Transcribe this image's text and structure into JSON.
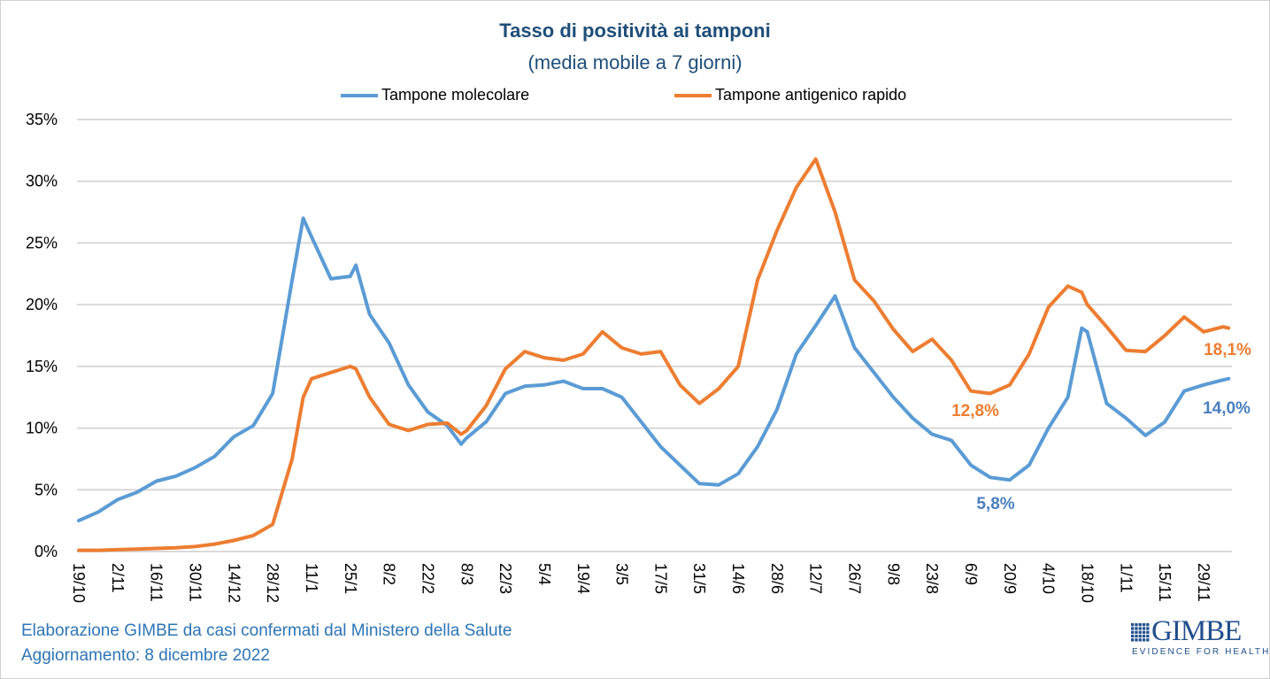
{
  "chart_data": {
    "type": "line",
    "title": "Tasso di positività ai tamponi",
    "subtitle": "(media mobile a 7 giorni)",
    "xlabel": "",
    "ylabel": "",
    "ylim": [
      0,
      35
    ],
    "yticks": [
      "0%",
      "5%",
      "10%",
      "15%",
      "20%",
      "25%",
      "30%",
      "35%"
    ],
    "ytick_values": [
      0,
      5,
      10,
      15,
      20,
      25,
      30,
      35
    ],
    "grid": true,
    "legend": "top",
    "xrange": [
      "2021-10-19",
      "2022-12-08"
    ],
    "xtick_dates": [
      "2021-10-19",
      "2021-11-02",
      "2021-11-16",
      "2021-11-30",
      "2021-12-14",
      "2021-12-28",
      "2022-01-11",
      "2022-01-25",
      "2022-02-08",
      "2022-02-22",
      "2022-03-08",
      "2022-03-22",
      "2022-04-05",
      "2022-04-19",
      "2022-05-03",
      "2022-05-17",
      "2022-05-31",
      "2022-06-14",
      "2022-06-28",
      "2022-07-12",
      "2022-07-26",
      "2022-08-09",
      "2022-08-23",
      "2022-09-06",
      "2022-09-20",
      "2022-10-04",
      "2022-10-18",
      "2022-11-01",
      "2022-11-15",
      "2022-11-29"
    ],
    "xticks": [
      "19/10",
      "2/11",
      "16/11",
      "30/11",
      "14/12",
      "28/12",
      "11/1",
      "25/1",
      "8/2",
      "22/2",
      "8/3",
      "22/3",
      "5/4",
      "19/4",
      "3/5",
      "17/5",
      "31/5",
      "14/6",
      "28/6",
      "12/7",
      "26/7",
      "9/8",
      "23/8",
      "6/9",
      "20/9",
      "4/10",
      "18/10",
      "1/11",
      "15/11",
      "29/11"
    ],
    "x": [
      "2021-10-19",
      "2021-10-26",
      "2021-11-02",
      "2021-11-09",
      "2021-11-16",
      "2021-11-23",
      "2021-11-30",
      "2021-12-07",
      "2021-12-14",
      "2021-12-21",
      "2021-12-28",
      "2022-01-04",
      "2022-01-08",
      "2022-01-11",
      "2022-01-18",
      "2022-01-25",
      "2022-01-27",
      "2022-02-01",
      "2022-02-08",
      "2022-02-15",
      "2022-02-22",
      "2022-03-01",
      "2022-03-06",
      "2022-03-08",
      "2022-03-15",
      "2022-03-22",
      "2022-03-29",
      "2022-04-05",
      "2022-04-12",
      "2022-04-19",
      "2022-04-26",
      "2022-05-03",
      "2022-05-10",
      "2022-05-17",
      "2022-05-24",
      "2022-05-31",
      "2022-06-07",
      "2022-06-14",
      "2022-06-21",
      "2022-06-28",
      "2022-07-05",
      "2022-07-12",
      "2022-07-19",
      "2022-07-26",
      "2022-08-02",
      "2022-08-09",
      "2022-08-16",
      "2022-08-23",
      "2022-08-30",
      "2022-09-06",
      "2022-09-13",
      "2022-09-20",
      "2022-09-27",
      "2022-10-04",
      "2022-10-11",
      "2022-10-16",
      "2022-10-18",
      "2022-10-25",
      "2022-11-01",
      "2022-11-08",
      "2022-11-15",
      "2022-11-22",
      "2022-11-29",
      "2022-12-06",
      "2022-12-08"
    ],
    "series": [
      {
        "name": "Tampone molecolare",
        "color": "#5b9bd5",
        "values": [
          2.5,
          3.2,
          4.2,
          4.8,
          5.7,
          6.1,
          6.8,
          7.7,
          9.3,
          10.2,
          12.8,
          22.0,
          27.0,
          25.5,
          22.1,
          22.3,
          23.2,
          19.2,
          16.9,
          13.5,
          11.3,
          10.2,
          8.7,
          9.2,
          10.5,
          12.8,
          13.4,
          13.5,
          13.8,
          13.2,
          13.2,
          12.5,
          10.5,
          8.5,
          7.0,
          5.5,
          5.4,
          6.3,
          8.5,
          11.5,
          16.0,
          18.3,
          20.7,
          16.5,
          14.5,
          12.5,
          10.8,
          9.5,
          9.0,
          7.0,
          6.0,
          5.8,
          7.0,
          10.0,
          12.5,
          18.1,
          17.8,
          12.0,
          10.8,
          9.4,
          10.5,
          13.0,
          13.5,
          13.9,
          14.0
        ]
      },
      {
        "name": "Tampone antigenico rapido",
        "color": "#ed7d31",
        "values": [
          0.1,
          0.1,
          0.15,
          0.2,
          0.25,
          0.3,
          0.4,
          0.6,
          0.9,
          1.3,
          2.2,
          7.5,
          12.5,
          14.0,
          14.5,
          15.0,
          14.8,
          12.5,
          10.3,
          9.8,
          10.3,
          10.4,
          9.5,
          9.8,
          11.8,
          14.8,
          16.2,
          15.7,
          15.5,
          16.0,
          17.8,
          16.5,
          16.0,
          16.2,
          13.5,
          12.0,
          13.2,
          15.0,
          22.0,
          26.0,
          29.5,
          31.8,
          27.5,
          22.0,
          20.3,
          18.0,
          16.2,
          17.2,
          15.5,
          13.0,
          12.8,
          13.5,
          16.0,
          19.8,
          21.5,
          21.0,
          20.0,
          18.2,
          16.3,
          16.2,
          17.5,
          19.0,
          17.8,
          18.2,
          18.1
        ]
      }
    ],
    "annotations": [
      {
        "text": "12,8%",
        "series": "Tampone antigenico rapido",
        "color": "#ed7d31"
      },
      {
        "text": "5,8%",
        "series": "Tampone molecolare",
        "color": "#4a7fc0"
      },
      {
        "text": "18,1%",
        "series": "Tampone antigenico rapido",
        "color": "#ed7d31"
      },
      {
        "text": "14,0%",
        "series": "Tampone molecolare",
        "color": "#4a7fc0"
      }
    ]
  },
  "footer": {
    "source": "Elaborazione GIMBE da casi confermati dal Ministero della Salute",
    "updated": "Aggiornamento: 8 dicembre 2022"
  },
  "logo": {
    "name": "GIMBE",
    "tagline": "EVIDENCE FOR HEALTH"
  }
}
